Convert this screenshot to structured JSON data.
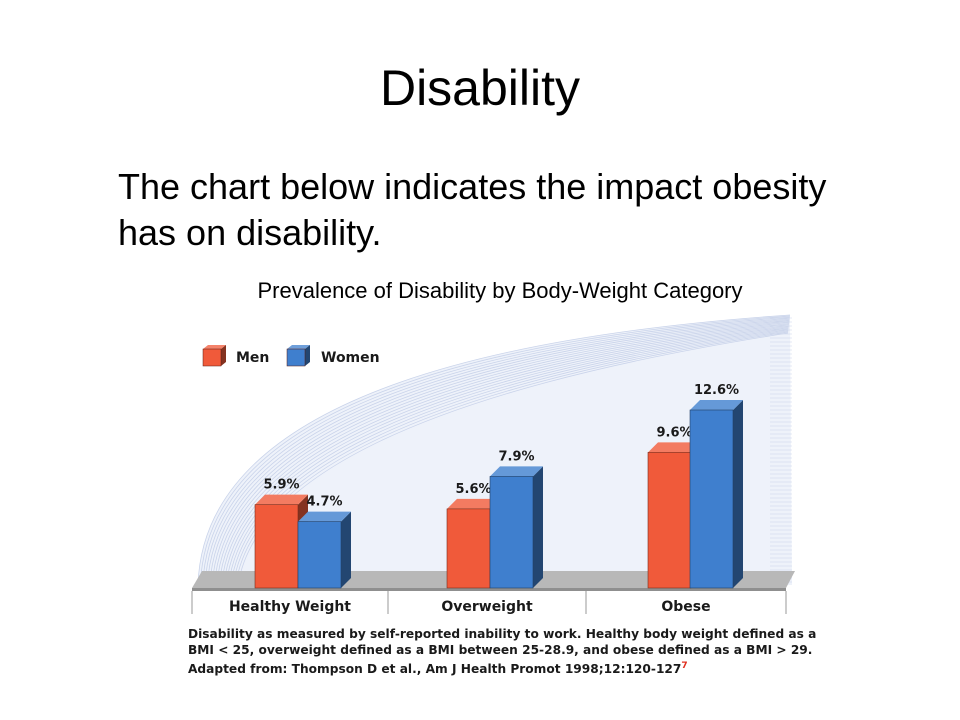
{
  "slide": {
    "title": "Disability",
    "intro": "The chart below indicates the impact obesity has on disability."
  },
  "chart_data": {
    "type": "bar",
    "title": "Prevalence of Disability by Body-Weight Category",
    "categories": [
      "Healthy Weight",
      "Overweight",
      "Obese"
    ],
    "series": [
      {
        "name": "Men",
        "values": [
          5.9,
          5.6,
          9.6
        ],
        "labels": [
          "5.9%",
          "5.6%",
          "9.6%"
        ],
        "color": "#f05a3a"
      },
      {
        "name": "Women",
        "values": [
          4.7,
          7.9,
          12.6
        ],
        "labels": [
          "4.7%",
          "7.9%",
          "12.6%"
        ],
        "color": "#3f7fce"
      }
    ],
    "legend_position": "top-left",
    "ylim": [
      0,
      12.6
    ]
  },
  "footnote": {
    "lines": [
      "Disability as measured by self-reported inability to work. Healthy body weight defined as a",
      "BMI < 25, overweight defined as a BMI between 25-28.9, and obese defined as a BMI > 29.",
      "Adapted from: Thompson D et al., Am J Health Promot 1998;12:120-127"
    ],
    "ref_marker": "7"
  },
  "colors": {
    "men": "#f05a3a",
    "women": "#3f7fce",
    "floor": "#b8b8b8",
    "backdrop_lines": "#c9d3ea"
  }
}
